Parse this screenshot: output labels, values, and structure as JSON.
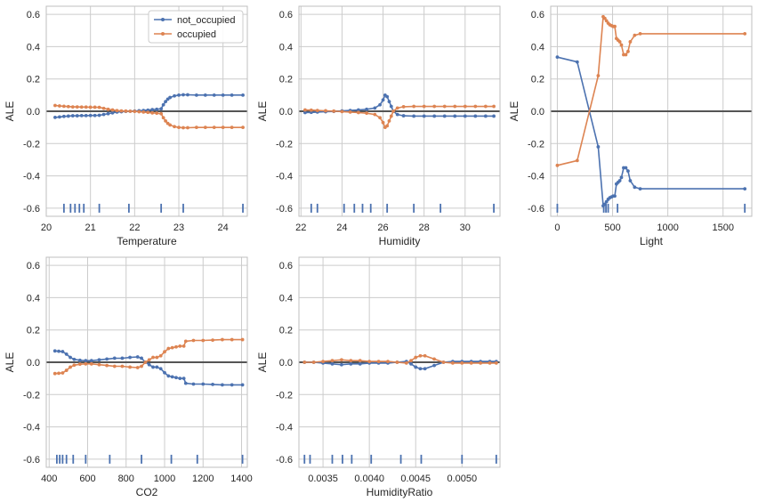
{
  "legend": {
    "placement": "top-right of first panel",
    "entries": [
      {
        "label": "not_occupied",
        "color": "#4c72b0"
      },
      {
        "label": "occupied",
        "color": "#dd8452"
      }
    ]
  },
  "style": {
    "grid": true,
    "zero_line_color": "#555555",
    "rug_color": "#4c72b0"
  },
  "chart_data": [
    {
      "type": "line",
      "title": "",
      "xlabel": "Temperature",
      "ylabel": "ALE",
      "xlim": [
        20.0,
        24.55
      ],
      "ylim": [
        -0.65,
        0.65
      ],
      "xticks": [
        20,
        21,
        22,
        23,
        24
      ],
      "yticks": [
        -0.6,
        -0.4,
        -0.2,
        0.0,
        0.2,
        0.4,
        0.6
      ],
      "rug": [
        20.4,
        20.55,
        20.65,
        20.75,
        20.85,
        21.2,
        21.87,
        22.6,
        23.1,
        24.45
      ],
      "series": [
        {
          "name": "not_occupied",
          "x": [
            20.2,
            20.3,
            20.4,
            20.5,
            20.6,
            20.7,
            20.8,
            20.9,
            21.0,
            21.1,
            21.2,
            21.3,
            21.4,
            21.5,
            21.6,
            21.7,
            21.8,
            21.9,
            22.0,
            22.1,
            22.2,
            22.3,
            22.4,
            22.5,
            22.6,
            22.65,
            22.7,
            22.75,
            22.8,
            22.9,
            23.0,
            23.1,
            23.2,
            23.4,
            23.6,
            23.8,
            24.0,
            24.2,
            24.45
          ],
          "y": [
            -0.038,
            -0.035,
            -0.032,
            -0.03,
            -0.028,
            -0.028,
            -0.027,
            -0.027,
            -0.026,
            -0.026,
            -0.025,
            -0.02,
            -0.015,
            -0.01,
            -0.005,
            -0.003,
            -0.001,
            0.0,
            0.001,
            0.003,
            0.005,
            0.007,
            0.01,
            0.012,
            0.015,
            0.04,
            0.06,
            0.075,
            0.085,
            0.095,
            0.1,
            0.102,
            0.102,
            0.1,
            0.1,
            0.1,
            0.1,
            0.1,
            0.1
          ]
        },
        {
          "name": "occupied",
          "x": [
            20.2,
            20.3,
            20.4,
            20.5,
            20.6,
            20.7,
            20.8,
            20.9,
            21.0,
            21.1,
            21.2,
            21.3,
            21.4,
            21.5,
            21.6,
            21.7,
            21.8,
            21.9,
            22.0,
            22.1,
            22.2,
            22.3,
            22.4,
            22.5,
            22.6,
            22.65,
            22.7,
            22.75,
            22.8,
            22.9,
            23.0,
            23.1,
            23.2,
            23.4,
            23.6,
            23.8,
            24.0,
            24.2,
            24.45
          ],
          "y": [
            0.036,
            0.033,
            0.031,
            0.029,
            0.027,
            0.027,
            0.026,
            0.026,
            0.025,
            0.025,
            0.024,
            0.018,
            0.012,
            0.008,
            0.004,
            0.002,
            0.001,
            0.0,
            -0.001,
            -0.003,
            -0.005,
            -0.007,
            -0.01,
            -0.012,
            -0.015,
            -0.04,
            -0.06,
            -0.075,
            -0.085,
            -0.095,
            -0.1,
            -0.102,
            -0.102,
            -0.1,
            -0.1,
            -0.1,
            -0.1,
            -0.1,
            -0.1
          ]
        }
      ]
    },
    {
      "type": "line",
      "title": "",
      "xlabel": "Humidity",
      "ylabel": "ALE",
      "xlim": [
        21.9,
        31.7
      ],
      "ylim": [
        -0.65,
        0.65
      ],
      "xticks": [
        22,
        24,
        26,
        28,
        30
      ],
      "yticks": [
        -0.6,
        -0.4,
        -0.2,
        0.0,
        0.2,
        0.4,
        0.6
      ],
      "rug": [
        22.5,
        22.8,
        24.1,
        24.6,
        25.0,
        25.4,
        26.2,
        27.5,
        28.8,
        31.4
      ],
      "series": [
        {
          "name": "not_occupied",
          "x": [
            22.2,
            22.5,
            22.8,
            23.2,
            23.6,
            24.0,
            24.4,
            24.8,
            25.2,
            25.6,
            25.85,
            26.0,
            26.1,
            26.2,
            26.3,
            26.4,
            26.5,
            26.7,
            27.0,
            27.5,
            28.0,
            28.5,
            29.0,
            29.5,
            30.0,
            30.5,
            31.0,
            31.4
          ],
          "y": [
            -0.008,
            -0.007,
            -0.005,
            -0.003,
            -0.001,
            0.002,
            0.005,
            0.008,
            0.012,
            0.02,
            0.04,
            0.07,
            0.1,
            0.09,
            0.06,
            0.03,
            0.0,
            -0.02,
            -0.028,
            -0.03,
            -0.03,
            -0.03,
            -0.03,
            -0.03,
            -0.03,
            -0.03,
            -0.03,
            -0.03
          ]
        },
        {
          "name": "occupied",
          "x": [
            22.2,
            22.5,
            22.8,
            23.2,
            23.6,
            24.0,
            24.4,
            24.8,
            25.2,
            25.6,
            25.85,
            26.0,
            26.1,
            26.2,
            26.3,
            26.4,
            26.5,
            26.7,
            27.0,
            27.5,
            28.0,
            28.5,
            29.0,
            29.5,
            30.0,
            30.5,
            31.0,
            31.4
          ],
          "y": [
            0.008,
            0.007,
            0.005,
            0.003,
            0.001,
            -0.002,
            -0.005,
            -0.008,
            -0.012,
            -0.02,
            -0.04,
            -0.07,
            -0.1,
            -0.09,
            -0.06,
            -0.03,
            0.0,
            0.02,
            0.028,
            0.03,
            0.03,
            0.03,
            0.03,
            0.03,
            0.03,
            0.03,
            0.03,
            0.03
          ]
        }
      ]
    },
    {
      "type": "line",
      "title": "",
      "xlabel": "Light",
      "ylabel": "ALE",
      "xlim": [
        -60,
        1760
      ],
      "ylim": [
        -0.65,
        0.65
      ],
      "xticks": [
        0,
        500,
        1000,
        1500
      ],
      "yticks": [
        -0.6,
        -0.4,
        -0.2,
        0.0,
        0.2,
        0.4,
        0.6
      ],
      "rug": [
        0,
        420,
        440,
        460,
        545,
        1697
      ],
      "series": [
        {
          "name": "not_occupied",
          "x": [
            0,
            180,
            370,
            415,
            430,
            445,
            460,
            475,
            490,
            505,
            520,
            535,
            550,
            565,
            580,
            600,
            620,
            640,
            660,
            700,
            750,
            1697
          ],
          "y": [
            0.335,
            0.305,
            -0.22,
            -0.585,
            -0.575,
            -0.56,
            -0.545,
            -0.535,
            -0.53,
            -0.525,
            -0.525,
            -0.45,
            -0.44,
            -0.43,
            -0.41,
            -0.35,
            -0.35,
            -0.37,
            -0.43,
            -0.47,
            -0.48,
            -0.48
          ]
        },
        {
          "name": "occupied",
          "x": [
            0,
            180,
            370,
            415,
            430,
            445,
            460,
            475,
            490,
            505,
            520,
            535,
            550,
            565,
            580,
            600,
            620,
            640,
            660,
            700,
            750,
            1697
          ],
          "y": [
            -0.335,
            -0.305,
            0.22,
            0.585,
            0.575,
            0.56,
            0.545,
            0.535,
            0.53,
            0.525,
            0.525,
            0.45,
            0.44,
            0.43,
            0.41,
            0.35,
            0.35,
            0.37,
            0.43,
            0.47,
            0.48,
            0.48
          ]
        }
      ]
    },
    {
      "type": "line",
      "title": "",
      "xlabel": "CO2",
      "ylabel": "ALE",
      "xlim": [
        385,
        1430
      ],
      "ylim": [
        -0.65,
        0.65
      ],
      "xticks": [
        400,
        600,
        800,
        1000,
        1200,
        1400
      ],
      "yticks": [
        -0.6,
        -0.4,
        -0.2,
        0.0,
        0.2,
        0.4,
        0.6
      ],
      "rug": [
        440,
        455,
        470,
        490,
        525,
        590,
        715,
        880,
        1035,
        1170,
        1405
      ],
      "series": [
        {
          "name": "not_occupied",
          "x": [
            430,
            450,
            470,
            490,
            510,
            530,
            560,
            590,
            620,
            660,
            700,
            740,
            780,
            820,
            860,
            880,
            900,
            920,
            940,
            960,
            980,
            1000,
            1020,
            1040,
            1060,
            1080,
            1100,
            1110,
            1150,
            1200,
            1250,
            1300,
            1350,
            1405
          ],
          "y": [
            0.07,
            0.068,
            0.066,
            0.05,
            0.03,
            0.018,
            0.012,
            0.01,
            0.01,
            0.015,
            0.02,
            0.025,
            0.025,
            0.03,
            0.033,
            0.025,
            0.0,
            -0.015,
            -0.03,
            -0.03,
            -0.04,
            -0.065,
            -0.085,
            -0.09,
            -0.095,
            -0.1,
            -0.1,
            -0.13,
            -0.135,
            -0.135,
            -0.137,
            -0.14,
            -0.14,
            -0.14
          ]
        },
        {
          "name": "occupied",
          "x": [
            430,
            450,
            470,
            490,
            510,
            530,
            560,
            590,
            620,
            660,
            700,
            740,
            780,
            820,
            860,
            880,
            900,
            920,
            940,
            960,
            980,
            1000,
            1020,
            1040,
            1060,
            1080,
            1100,
            1110,
            1150,
            1200,
            1250,
            1300,
            1350,
            1405
          ],
          "y": [
            -0.07,
            -0.068,
            -0.066,
            -0.05,
            -0.03,
            -0.018,
            -0.012,
            -0.01,
            -0.01,
            -0.015,
            -0.02,
            -0.025,
            -0.025,
            -0.03,
            -0.033,
            -0.025,
            0.0,
            0.015,
            0.03,
            0.03,
            0.04,
            0.065,
            0.085,
            0.09,
            0.095,
            0.1,
            0.1,
            0.13,
            0.135,
            0.135,
            0.137,
            0.14,
            0.14,
            0.14
          ]
        }
      ]
    },
    {
      "type": "line",
      "title": "",
      "xlabel": "HumidityRatio",
      "ylabel": "ALE",
      "xlim": [
        0.00324,
        0.00541
      ],
      "ylim": [
        -0.65,
        0.65
      ],
      "xticks": [
        0.0035,
        0.004,
        0.0045,
        0.005
      ],
      "xticklabels": [
        "0.0035",
        "0.0040",
        "0.0045",
        "0.0050"
      ],
      "yticks": [
        -0.6,
        -0.4,
        -0.2,
        0.0,
        0.2,
        0.4,
        0.6
      ],
      "rug": [
        0.0033,
        0.00336,
        0.0036,
        0.00371,
        0.00381,
        0.00402,
        0.00434,
        0.00456,
        0.005,
        0.00537
      ],
      "series": [
        {
          "name": "not_occupied",
          "x": [
            0.0033,
            0.0034,
            0.0035,
            0.0036,
            0.0037,
            0.0038,
            0.0039,
            0.004,
            0.0041,
            0.0042,
            0.0043,
            0.0044,
            0.00445,
            0.0045,
            0.00455,
            0.0046,
            0.0047,
            0.0048,
            0.0049,
            0.005,
            0.0051,
            0.0052,
            0.0053,
            0.00537
          ],
          "y": [
            0.0,
            0.0,
            -0.005,
            -0.01,
            -0.015,
            -0.01,
            -0.01,
            -0.005,
            -0.005,
            -0.005,
            0.0,
            0.005,
            -0.01,
            -0.03,
            -0.04,
            -0.04,
            -0.02,
            0.0,
            0.005,
            0.005,
            0.005,
            0.005,
            0.005,
            0.005
          ]
        },
        {
          "name": "occupied",
          "x": [
            0.0033,
            0.0034,
            0.0035,
            0.0036,
            0.0037,
            0.0038,
            0.0039,
            0.004,
            0.0041,
            0.0042,
            0.0043,
            0.0044,
            0.00445,
            0.0045,
            0.00455,
            0.0046,
            0.0047,
            0.0048,
            0.0049,
            0.005,
            0.0051,
            0.0052,
            0.0053,
            0.00537
          ],
          "y": [
            0.0,
            0.0,
            0.005,
            0.01,
            0.015,
            0.01,
            0.01,
            0.005,
            0.005,
            0.005,
            0.0,
            -0.005,
            0.01,
            0.03,
            0.04,
            0.04,
            0.02,
            0.0,
            -0.005,
            -0.005,
            -0.005,
            -0.005,
            -0.005,
            -0.005
          ]
        }
      ]
    }
  ]
}
